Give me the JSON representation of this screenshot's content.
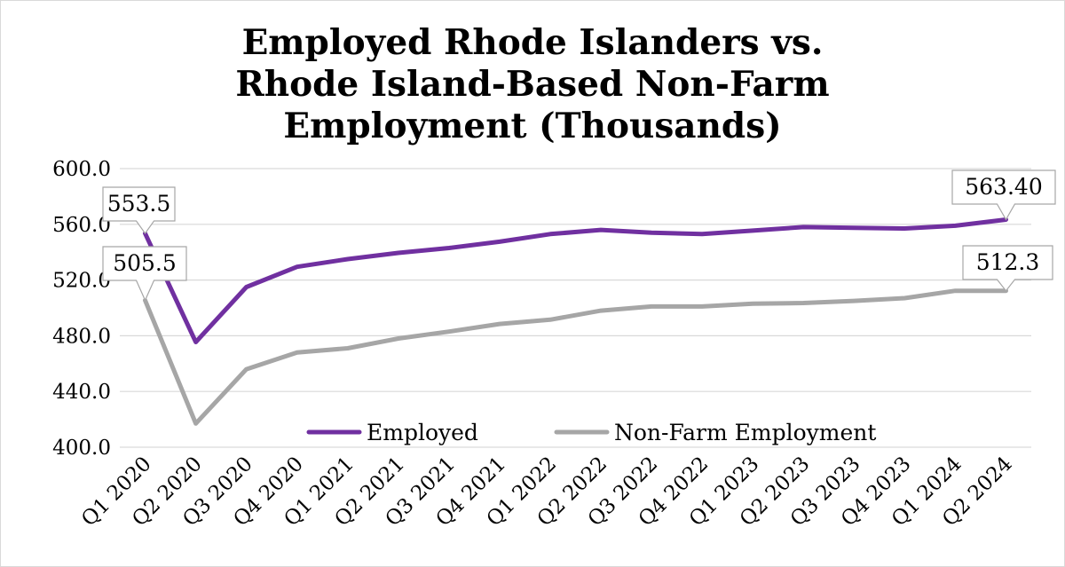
{
  "chart_data": {
    "type": "line",
    "title": [
      "Employed Rhode Islanders vs.",
      "Rhode Island-Based Non-Farm",
      "Employment (Thousands)"
    ],
    "categories": [
      "Q1 2020",
      "Q2 2020",
      "Q3 2020",
      "Q4 2020",
      "Q1 2021",
      "Q2 2021",
      "Q3 2021",
      "Q4 2021",
      "Q1 2022",
      "Q2 2022",
      "Q3 2022",
      "Q4 2022",
      "Q1 2023",
      "Q2 2023",
      "Q3 2023",
      "Q4 2023",
      "Q1 2024",
      "Q2 2024"
    ],
    "ylim": [
      400,
      600
    ],
    "yticks": [
      "400.0",
      "440.0",
      "480.0",
      "520.0",
      "560.0",
      "600.0"
    ],
    "ytick_values": [
      400,
      440,
      480,
      520,
      560,
      600
    ],
    "grid": true,
    "legend_position": "bottom-inside",
    "series": [
      {
        "name": "Employed",
        "color": "#7030a0",
        "values": [
          553.5,
          475.5,
          515.0,
          529.5,
          535.0,
          539.5,
          543.0,
          547.5,
          553.0,
          556.0,
          554.0,
          553.0,
          555.5,
          558.0,
          557.5,
          557.0,
          559.0,
          563.4
        ],
        "labels": [
          {
            "index": 0,
            "text": "553.5"
          },
          {
            "index": 17,
            "text": "563.40"
          }
        ]
      },
      {
        "name": "Non-Farm Employment",
        "color": "#a6a6a6",
        "values": [
          505.5,
          417.0,
          456.0,
          468.0,
          471.0,
          478.0,
          483.0,
          488.5,
          491.5,
          498.0,
          501.0,
          501.0,
          503.0,
          503.5,
          505.0,
          507.0,
          512.3,
          512.3
        ],
        "labels": [
          {
            "index": 0,
            "text": "505.5"
          },
          {
            "index": 17,
            "text": "512.3"
          }
        ]
      }
    ]
  }
}
